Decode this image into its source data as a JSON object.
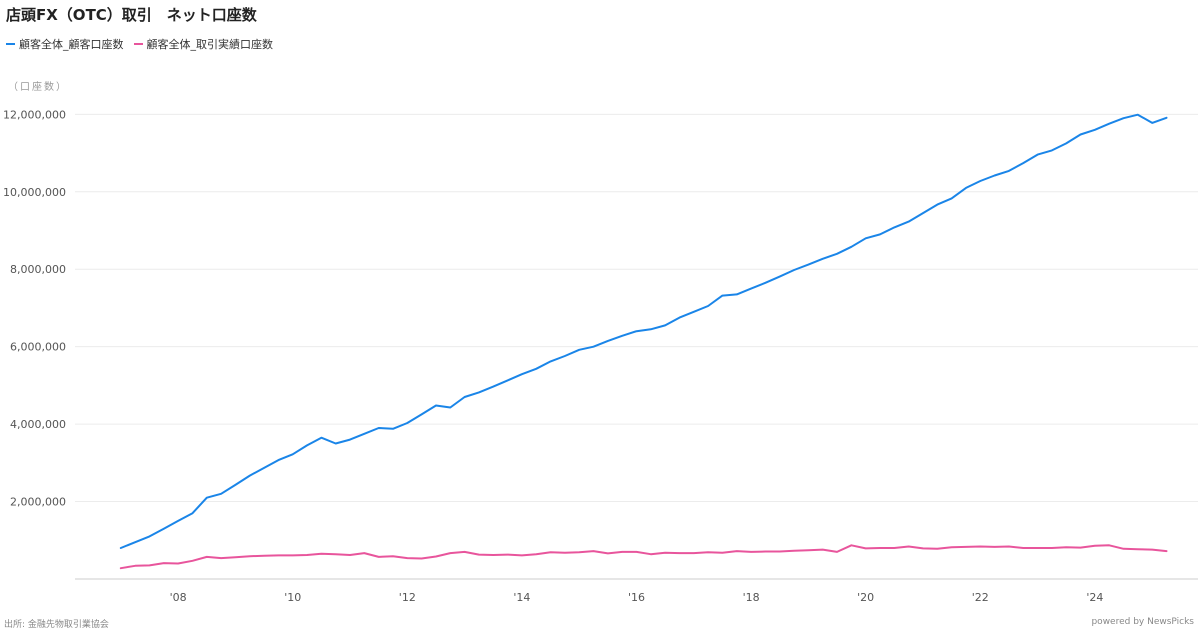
{
  "header": {
    "title": "店頭FX（OTC）取引　ネット口座数"
  },
  "footer": {
    "source": "出所: 金融先物取引業協会",
    "credit": "powered by NewsPicks"
  },
  "chart_data": {
    "type": "line",
    "title": "店頭FX（OTC）取引　ネット口座数",
    "unit_label": "（口座数）",
    "ylim": [
      0,
      12500000
    ],
    "xlim": [
      2006.2,
      2025.8
    ],
    "yticks": [
      2000000,
      4000000,
      6000000,
      8000000,
      10000000,
      12000000
    ],
    "ytick_labels": [
      "2,000,000",
      "4,000,000",
      "6,000,000",
      "8,000,000",
      "10,000,000",
      "12,000,000"
    ],
    "xticks": [
      2008,
      2010,
      2012,
      2014,
      2016,
      2018,
      2020,
      2022,
      2024
    ],
    "xtick_labels": [
      "'08",
      "'10",
      "'12",
      "'14",
      "'16",
      "'18",
      "'20",
      "'22",
      "'24"
    ],
    "grid": true,
    "legend_position": "top-left",
    "series": [
      {
        "name": "顧客全体_顧客口座数",
        "color": "#1a85e8",
        "points": [
          [
            2007.0,
            800000
          ],
          [
            2007.25,
            950000
          ],
          [
            2007.5,
            1100000
          ],
          [
            2007.75,
            1300000
          ],
          [
            2008.0,
            1500000
          ],
          [
            2008.25,
            1700000
          ],
          [
            2008.5,
            2100000
          ],
          [
            2008.75,
            2200000
          ],
          [
            2009.0,
            2430000
          ],
          [
            2009.25,
            2670000
          ],
          [
            2009.5,
            2870000
          ],
          [
            2009.75,
            3070000
          ],
          [
            2010.0,
            3220000
          ],
          [
            2010.25,
            3450000
          ],
          [
            2010.5,
            3650000
          ],
          [
            2010.75,
            3500000
          ],
          [
            2011.0,
            3600000
          ],
          [
            2011.25,
            3750000
          ],
          [
            2011.5,
            3900000
          ],
          [
            2011.75,
            3880000
          ],
          [
            2012.0,
            4030000
          ],
          [
            2012.25,
            4250000
          ],
          [
            2012.5,
            4480000
          ],
          [
            2012.75,
            4430000
          ],
          [
            2013.0,
            4700000
          ],
          [
            2013.25,
            4820000
          ],
          [
            2013.5,
            4970000
          ],
          [
            2013.75,
            5130000
          ],
          [
            2014.0,
            5290000
          ],
          [
            2014.25,
            5430000
          ],
          [
            2014.5,
            5620000
          ],
          [
            2014.75,
            5760000
          ],
          [
            2015.0,
            5920000
          ],
          [
            2015.25,
            6000000
          ],
          [
            2015.5,
            6150000
          ],
          [
            2015.75,
            6280000
          ],
          [
            2016.0,
            6400000
          ],
          [
            2016.25,
            6450000
          ],
          [
            2016.5,
            6550000
          ],
          [
            2016.75,
            6750000
          ],
          [
            2017.0,
            6900000
          ],
          [
            2017.25,
            7050000
          ],
          [
            2017.5,
            7320000
          ],
          [
            2017.75,
            7350000
          ],
          [
            2018.0,
            7500000
          ],
          [
            2018.25,
            7650000
          ],
          [
            2018.5,
            7810000
          ],
          [
            2018.75,
            7980000
          ],
          [
            2019.0,
            8120000
          ],
          [
            2019.25,
            8270000
          ],
          [
            2019.5,
            8400000
          ],
          [
            2019.75,
            8580000
          ],
          [
            2020.0,
            8800000
          ],
          [
            2020.25,
            8900000
          ],
          [
            2020.5,
            9080000
          ],
          [
            2020.75,
            9230000
          ],
          [
            2021.0,
            9450000
          ],
          [
            2021.25,
            9670000
          ],
          [
            2021.5,
            9830000
          ],
          [
            2021.75,
            10100000
          ],
          [
            2022.0,
            10280000
          ],
          [
            2022.25,
            10420000
          ],
          [
            2022.5,
            10540000
          ],
          [
            2022.75,
            10740000
          ],
          [
            2023.0,
            10960000
          ],
          [
            2023.25,
            11070000
          ],
          [
            2023.5,
            11250000
          ],
          [
            2023.75,
            11480000
          ],
          [
            2024.0,
            11600000
          ],
          [
            2024.25,
            11760000
          ],
          [
            2024.5,
            11900000
          ],
          [
            2024.75,
            11990000
          ],
          [
            2025.0,
            11780000
          ],
          [
            2025.25,
            11910000
          ]
        ]
      },
      {
        "name": "顧客全体_取引実績口座数",
        "color": "#e8559c",
        "points": [
          [
            2007.0,
            280000
          ],
          [
            2007.25,
            340000
          ],
          [
            2007.5,
            350000
          ],
          [
            2007.75,
            410000
          ],
          [
            2008.0,
            400000
          ],
          [
            2008.25,
            470000
          ],
          [
            2008.5,
            570000
          ],
          [
            2008.75,
            540000
          ],
          [
            2009.0,
            560000
          ],
          [
            2009.25,
            590000
          ],
          [
            2009.5,
            600000
          ],
          [
            2009.75,
            610000
          ],
          [
            2010.0,
            610000
          ],
          [
            2010.25,
            620000
          ],
          [
            2010.5,
            650000
          ],
          [
            2010.75,
            640000
          ],
          [
            2011.0,
            620000
          ],
          [
            2011.25,
            670000
          ],
          [
            2011.5,
            570000
          ],
          [
            2011.75,
            590000
          ],
          [
            2012.0,
            540000
          ],
          [
            2012.25,
            530000
          ],
          [
            2012.5,
            580000
          ],
          [
            2012.75,
            670000
          ],
          [
            2013.0,
            700000
          ],
          [
            2013.25,
            630000
          ],
          [
            2013.5,
            620000
          ],
          [
            2013.75,
            630000
          ],
          [
            2014.0,
            610000
          ],
          [
            2014.25,
            640000
          ],
          [
            2014.5,
            690000
          ],
          [
            2014.75,
            680000
          ],
          [
            2015.0,
            690000
          ],
          [
            2015.25,
            720000
          ],
          [
            2015.5,
            660000
          ],
          [
            2015.75,
            700000
          ],
          [
            2016.0,
            700000
          ],
          [
            2016.25,
            640000
          ],
          [
            2016.5,
            680000
          ],
          [
            2016.75,
            670000
          ],
          [
            2017.0,
            670000
          ],
          [
            2017.25,
            690000
          ],
          [
            2017.5,
            680000
          ],
          [
            2017.75,
            720000
          ],
          [
            2018.0,
            700000
          ],
          [
            2018.25,
            710000
          ],
          [
            2018.5,
            710000
          ],
          [
            2018.75,
            730000
          ],
          [
            2019.0,
            740000
          ],
          [
            2019.25,
            760000
          ],
          [
            2019.5,
            700000
          ],
          [
            2019.75,
            870000
          ],
          [
            2020.0,
            790000
          ],
          [
            2020.25,
            800000
          ],
          [
            2020.5,
            800000
          ],
          [
            2020.75,
            840000
          ],
          [
            2021.0,
            790000
          ],
          [
            2021.25,
            780000
          ],
          [
            2021.5,
            820000
          ],
          [
            2021.75,
            830000
          ],
          [
            2022.0,
            840000
          ],
          [
            2022.25,
            830000
          ],
          [
            2022.5,
            840000
          ],
          [
            2022.75,
            800000
          ],
          [
            2023.0,
            800000
          ],
          [
            2023.25,
            800000
          ],
          [
            2023.5,
            820000
          ],
          [
            2023.75,
            810000
          ],
          [
            2024.0,
            860000
          ],
          [
            2024.25,
            870000
          ],
          [
            2024.5,
            780000
          ],
          [
            2024.75,
            770000
          ],
          [
            2025.0,
            760000
          ],
          [
            2025.25,
            720000
          ]
        ]
      }
    ]
  }
}
